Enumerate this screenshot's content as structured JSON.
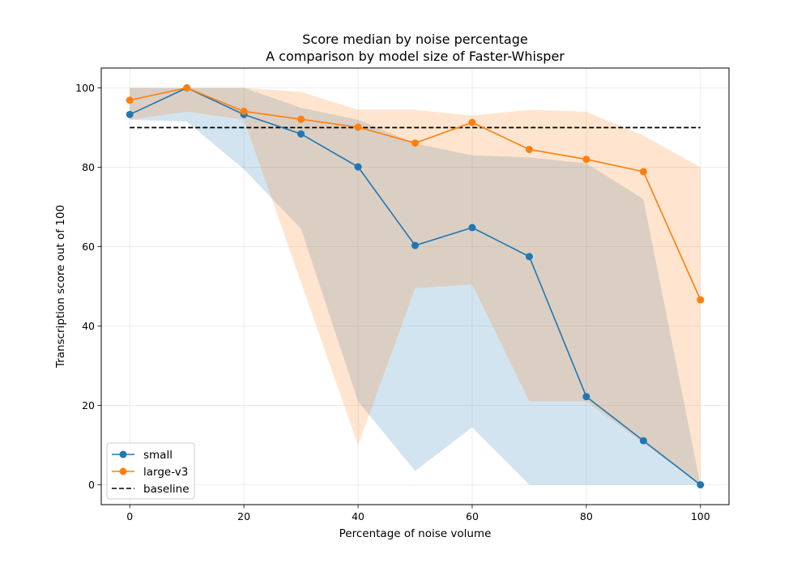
{
  "chart_data": {
    "type": "line",
    "title": "Score median by noise percentage",
    "subtitle": "A comparison by model size of Faster-Whisper",
    "xlabel": "Percentage of noise volume",
    "ylabel": "Transcription score out of 100",
    "xlim": [
      -5,
      105
    ],
    "ylim": [
      -5,
      105
    ],
    "xticks": [
      0,
      20,
      40,
      60,
      80,
      100
    ],
    "yticks": [
      0,
      20,
      40,
      60,
      80,
      100
    ],
    "grid": true,
    "legend_position": "lower-left",
    "x": [
      0,
      10,
      20,
      30,
      40,
      50,
      60,
      70,
      80,
      90,
      100
    ],
    "series": [
      {
        "name": "small",
        "color": "#1f77b4",
        "values": [
          93.3,
          100,
          93.3,
          88.4,
          80.1,
          60.3,
          64.8,
          57.5,
          22.2,
          11.1,
          0
        ],
        "band_upper": [
          100,
          100,
          100,
          95,
          92,
          86,
          83,
          82.5,
          81,
          72,
          0
        ],
        "band_lower": [
          92,
          91.5,
          79.5,
          64.5,
          21,
          3.5,
          14.5,
          0,
          0,
          0,
          0
        ]
      },
      {
        "name": "large-v3",
        "color": "#ff7f0e",
        "values": [
          96.9,
          100,
          94.1,
          92.1,
          90.1,
          86.1,
          91.3,
          84.5,
          82.0,
          78.9,
          46.6
        ],
        "band_upper": [
          100,
          100,
          100,
          99,
          94.5,
          94.5,
          93,
          94.5,
          94,
          88,
          80
        ],
        "band_lower": [
          92,
          94,
          92,
          51,
          10,
          49.5,
          50.5,
          21,
          21,
          10.5,
          0
        ]
      }
    ],
    "baseline": {
      "name": "baseline",
      "color": "#000000",
      "value": 90,
      "x_range": [
        0,
        100
      ]
    }
  }
}
